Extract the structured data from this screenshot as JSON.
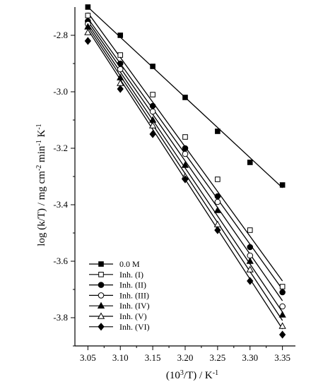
{
  "chart_data": {
    "type": "scatter",
    "title": "",
    "xlabel": {
      "prefix": "(10",
      "sup": "3",
      "suffix": "/T) / K",
      "sup2": "-1"
    },
    "ylabel": {
      "parts": [
        {
          "t": "log (k/T) /  mg cm"
        },
        {
          "t": "-2",
          "sup": true
        },
        {
          "t": " min"
        },
        {
          "t": "-1",
          "sup": true
        },
        {
          "t": " K"
        },
        {
          "t": "-1",
          "sup": true
        }
      ]
    },
    "xlim": [
      3.03,
      3.37
    ],
    "ylim": [
      -3.9,
      -2.7
    ],
    "xticks": [
      "3.05",
      "3.10",
      "3.15",
      "3.20",
      "3.25",
      "3.30",
      "3.35"
    ],
    "yticks": [
      "-2.8",
      "-3.0",
      "-3.2",
      "-3.4",
      "-3.6",
      "-3.8"
    ],
    "grid": false,
    "legend_position": "bottom-left",
    "x": [
      3.05,
      3.1,
      3.15,
      3.2,
      3.25,
      3.3,
      3.35
    ],
    "series": [
      {
        "name": "0.0 M",
        "marker": "square",
        "filled": true,
        "values": [
          -2.7,
          -2.8,
          -2.91,
          -3.02,
          -3.14,
          -3.25,
          -3.33
        ],
        "fit": [
          -2.7,
          -3.34
        ]
      },
      {
        "name": "Inh. (I)",
        "marker": "square",
        "filled": false,
        "values": [
          -2.73,
          -2.87,
          -3.01,
          -3.16,
          -3.31,
          -3.49,
          -3.69
        ],
        "fit": [
          -2.72,
          -3.67
        ]
      },
      {
        "name": "Inh. (II)",
        "marker": "circle",
        "filled": true,
        "values": [
          -2.75,
          -2.9,
          -3.05,
          -3.2,
          -3.37,
          -3.55,
          -3.71
        ],
        "fit": [
          -2.74,
          -3.7
        ]
      },
      {
        "name": "Inh. (III)",
        "marker": "circle",
        "filled": false,
        "values": [
          -2.76,
          -2.92,
          -3.07,
          -3.22,
          -3.39,
          -3.58,
          -3.76
        ],
        "fit": [
          -2.75,
          -3.74
        ]
      },
      {
        "name": "Inh. (IV)",
        "marker": "triangle",
        "filled": true,
        "values": [
          -2.77,
          -2.95,
          -3.1,
          -3.26,
          -3.42,
          -3.6,
          -3.79
        ],
        "fit": [
          -2.76,
          -3.78
        ]
      },
      {
        "name": "Inh. (V)",
        "marker": "triangle",
        "filled": false,
        "values": [
          -2.79,
          -2.97,
          -3.12,
          -3.3,
          -3.47,
          -3.63,
          -3.83
        ],
        "fit": [
          -2.77,
          -3.81
        ]
      },
      {
        "name": "Inh. (VI)",
        "marker": "diamond",
        "filled": true,
        "values": [
          -2.82,
          -2.99,
          -3.15,
          -3.31,
          -3.49,
          -3.67,
          -3.86
        ],
        "fit": [
          -2.78,
          -3.84
        ]
      }
    ]
  }
}
